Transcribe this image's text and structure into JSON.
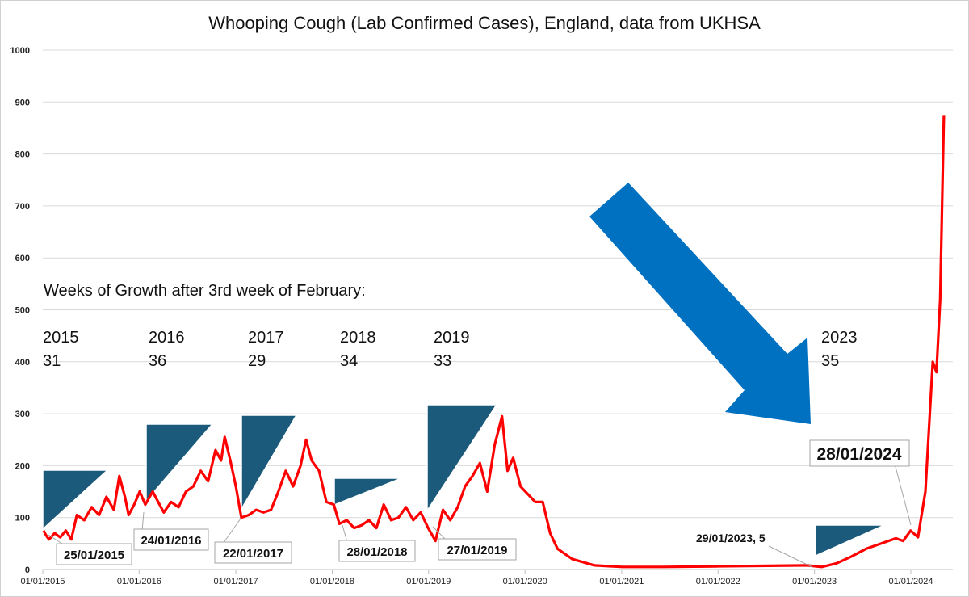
{
  "chart_data": {
    "type": "line",
    "title": "Whooping Cough (Lab Confirmed Cases), England, data from UKHSA",
    "xlabel": "",
    "ylabel": "",
    "ylim": [
      0,
      1000
    ],
    "y_ticks": [
      "0",
      "100",
      "200",
      "300",
      "400",
      "500",
      "600",
      "700",
      "800",
      "900",
      "1000"
    ],
    "x_ticks": [
      "01/01/2015",
      "01/01/2016",
      "01/01/2017",
      "01/01/2018",
      "01/01/2019",
      "01/01/2020",
      "01/01/2021",
      "01/01/2022",
      "01/01/2023",
      "01/01/2024"
    ],
    "grid": "horizontal",
    "series": [
      {
        "color": "#ff0000",
        "points": [
          [
            "2015-01-04",
            75
          ],
          [
            "2015-01-11",
            68
          ],
          [
            "2015-01-18",
            62
          ],
          [
            "2015-01-25",
            58
          ],
          [
            "2015-02-15",
            70
          ],
          [
            "2015-03-08",
            62
          ],
          [
            "2015-03-29",
            75
          ],
          [
            "2015-04-19",
            58
          ],
          [
            "2015-05-10",
            105
          ],
          [
            "2015-06-07",
            95
          ],
          [
            "2015-07-05",
            120
          ],
          [
            "2015-08-02",
            105
          ],
          [
            "2015-08-30",
            140
          ],
          [
            "2015-09-27",
            115
          ],
          [
            "2015-10-18",
            180
          ],
          [
            "2015-11-08",
            140
          ],
          [
            "2015-11-22",
            105
          ],
          [
            "2015-12-13",
            125
          ],
          [
            "2016-01-03",
            150
          ],
          [
            "2016-01-24",
            125
          ],
          [
            "2016-02-21",
            150
          ],
          [
            "2016-03-13",
            130
          ],
          [
            "2016-04-03",
            110
          ],
          [
            "2016-05-01",
            130
          ],
          [
            "2016-05-29",
            120
          ],
          [
            "2016-06-26",
            150
          ],
          [
            "2016-07-24",
            160
          ],
          [
            "2016-08-21",
            190
          ],
          [
            "2016-09-18",
            170
          ],
          [
            "2016-10-16",
            230
          ],
          [
            "2016-11-06",
            210
          ],
          [
            "2016-11-20",
            255
          ],
          [
            "2016-12-11",
            210
          ],
          [
            "2017-01-01",
            160
          ],
          [
            "2017-01-22",
            100
          ],
          [
            "2017-02-19",
            105
          ],
          [
            "2017-03-19",
            115
          ],
          [
            "2017-04-16",
            110
          ],
          [
            "2017-05-14",
            115
          ],
          [
            "2017-06-11",
            150
          ],
          [
            "2017-07-09",
            190
          ],
          [
            "2017-08-06",
            160
          ],
          [
            "2017-09-03",
            200
          ],
          [
            "2017-09-24",
            250
          ],
          [
            "2017-10-15",
            210
          ],
          [
            "2017-11-12",
            190
          ],
          [
            "2017-12-10",
            130
          ],
          [
            "2018-01-07",
            125
          ],
          [
            "2018-01-28",
            88
          ],
          [
            "2018-02-25",
            95
          ],
          [
            "2018-03-25",
            80
          ],
          [
            "2018-04-22",
            85
          ],
          [
            "2018-05-20",
            95
          ],
          [
            "2018-06-17",
            80
          ],
          [
            "2018-07-15",
            125
          ],
          [
            "2018-08-12",
            95
          ],
          [
            "2018-09-09",
            100
          ],
          [
            "2018-10-07",
            120
          ],
          [
            "2018-11-04",
            95
          ],
          [
            "2018-12-02",
            110
          ],
          [
            "2018-12-30",
            80
          ],
          [
            "2019-01-27",
            55
          ],
          [
            "2019-02-24",
            115
          ],
          [
            "2019-03-24",
            95
          ],
          [
            "2019-04-21",
            120
          ],
          [
            "2019-05-19",
            160
          ],
          [
            "2019-06-16",
            180
          ],
          [
            "2019-07-14",
            205
          ],
          [
            "2019-08-11",
            150
          ],
          [
            "2019-09-08",
            240
          ],
          [
            "2019-10-06",
            295
          ],
          [
            "2019-10-27",
            190
          ],
          [
            "2019-11-17",
            215
          ],
          [
            "2019-12-15",
            160
          ],
          [
            "2020-01-12",
            145
          ],
          [
            "2020-02-09",
            130
          ],
          [
            "2020-03-08",
            130
          ],
          [
            "2020-04-05",
            70
          ],
          [
            "2020-05-03",
            40
          ],
          [
            "2020-06-28",
            20
          ],
          [
            "2020-09-20",
            8
          ],
          [
            "2021-01-03",
            5
          ],
          [
            "2021-06-06",
            5
          ],
          [
            "2021-12-26",
            6
          ],
          [
            "2022-06-05",
            7
          ],
          [
            "2022-12-04",
            8
          ],
          [
            "2023-01-29",
            5
          ],
          [
            "2023-03-26",
            12
          ],
          [
            "2023-05-21",
            25
          ],
          [
            "2023-07-16",
            40
          ],
          [
            "2023-09-10",
            50
          ],
          [
            "2023-11-05",
            60
          ],
          [
            "2023-12-03",
            55
          ],
          [
            "2023-12-31",
            75
          ],
          [
            "2024-01-28",
            62
          ],
          [
            "2024-02-25",
            150
          ],
          [
            "2024-03-24",
            400
          ],
          [
            "2024-04-07",
            380
          ],
          [
            "2024-04-21",
            520
          ],
          [
            "2024-05-05",
            875
          ]
        ]
      }
    ],
    "annotations": {
      "heading": "Weeks of Growth after 3rd week of February:",
      "years": [
        {
          "year": "2015",
          "weeks": "31"
        },
        {
          "year": "2016",
          "weeks": "36"
        },
        {
          "year": "2017",
          "weeks": "29"
        },
        {
          "year": "2018",
          "weeks": "34"
        },
        {
          "year": "2019",
          "weeks": "33"
        },
        {
          "year": "2023",
          "weeks": "35"
        }
      ],
      "date_labels": [
        "25/01/2015",
        "24/01/2016",
        "22/01/2017",
        "28/01/2018",
        "27/01/2019"
      ],
      "callout_2023": "29/01/2023, 5",
      "callout_2024": "28/01/2024",
      "triangle_color": "#1b5a7a",
      "arrow_color": "#0070c0"
    }
  }
}
